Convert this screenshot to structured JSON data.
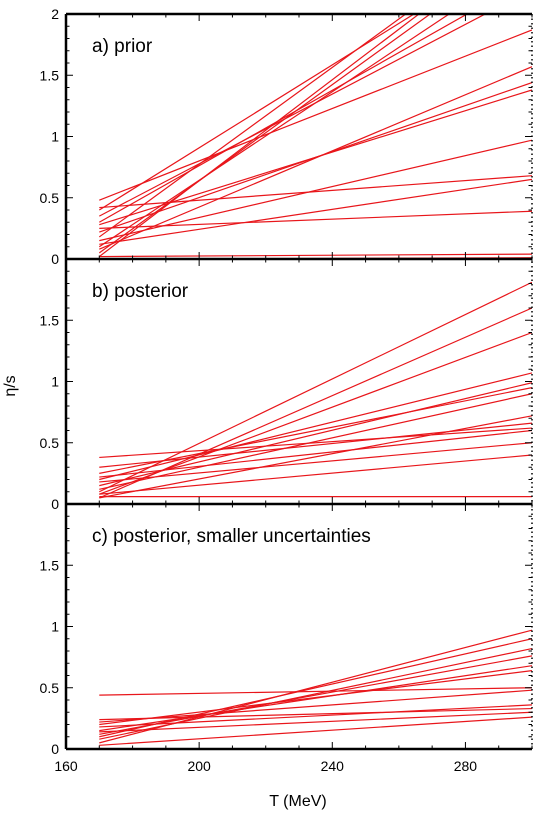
{
  "chart_data": {
    "type": "line",
    "xlabel": "T (MeV)",
    "ylabel": "η/s",
    "xlim": [
      160,
      300
    ],
    "ylim": [
      0,
      2
    ],
    "x_ticks": [
      "160",
      "200",
      "240",
      "280"
    ],
    "y_ticks": [
      "0",
      "0.5",
      "1",
      "1.5",
      "2"
    ],
    "line_color": "#e8161b",
    "grid": false,
    "panels": [
      {
        "id": "a",
        "title": "a) prior",
        "y_ticks": [
          "0",
          "0.5",
          "1",
          "1.5",
          "2"
        ],
        "series": [
          {
            "x": [
              170,
              300
            ],
            "y": [
              0.18,
              2.75
            ]
          },
          {
            "x": [
              170,
              300
            ],
            "y": [
              0.05,
              2.6
            ]
          },
          {
            "x": [
              170,
              300
            ],
            "y": [
              0.1,
              2.45
            ]
          },
          {
            "x": [
              170,
              300
            ],
            "y": [
              0.3,
              2.3
            ]
          },
          {
            "x": [
              170,
              300
            ],
            "y": [
              0.4,
              2.6
            ]
          },
          {
            "x": [
              170,
              300
            ],
            "y": [
              0.02,
              2.7
            ]
          },
          {
            "x": [
              170,
              300
            ],
            "y": [
              0.35,
              2.2
            ]
          },
          {
            "x": [
              170,
              300
            ],
            "y": [
              0.48,
              1.87
            ]
          },
          {
            "x": [
              170,
              300
            ],
            "y": [
              0.08,
              1.57
            ]
          },
          {
            "x": [
              170,
              300
            ],
            "y": [
              0.22,
              1.44
            ]
          },
          {
            "x": [
              170,
              300
            ],
            "y": [
              0.28,
              1.38
            ]
          },
          {
            "x": [
              170,
              300
            ],
            "y": [
              0.15,
              0.97
            ]
          },
          {
            "x": [
              170,
              300
            ],
            "y": [
              0.42,
              0.68
            ]
          },
          {
            "x": [
              170,
              300
            ],
            "y": [
              0.12,
              0.65
            ]
          },
          {
            "x": [
              170,
              300
            ],
            "y": [
              0.25,
              0.39
            ]
          },
          {
            "x": [
              170,
              300
            ],
            "y": [
              0.02,
              0.04
            ]
          },
          {
            "x": [
              170,
              300
            ],
            "y": [
              0.0,
              0.01
            ]
          }
        ]
      },
      {
        "id": "b",
        "title": "b) posterior",
        "y_ticks": [
          "0",
          "0.5",
          "1",
          "1.5"
        ],
        "series": [
          {
            "x": [
              170,
              300
            ],
            "y": [
              0.1,
              1.81
            ]
          },
          {
            "x": [
              170,
              300
            ],
            "y": [
              0.05,
              1.6
            ]
          },
          {
            "x": [
              170,
              300
            ],
            "y": [
              0.08,
              1.4
            ]
          },
          {
            "x": [
              170,
              300
            ],
            "y": [
              0.2,
              1.07
            ]
          },
          {
            "x": [
              170,
              300
            ],
            "y": [
              0.15,
              0.99
            ]
          },
          {
            "x": [
              170,
              300
            ],
            "y": [
              0.25,
              0.95
            ]
          },
          {
            "x": [
              170,
              300
            ],
            "y": [
              0.12,
              0.9
            ]
          },
          {
            "x": [
              170,
              300
            ],
            "y": [
              0.05,
              0.72
            ]
          },
          {
            "x": [
              170,
              300
            ],
            "y": [
              0.3,
              0.66
            ]
          },
          {
            "x": [
              170,
              300
            ],
            "y": [
              0.38,
              0.62
            ]
          },
          {
            "x": [
              170,
              300
            ],
            "y": [
              0.22,
              0.6
            ]
          },
          {
            "x": [
              170,
              300
            ],
            "y": [
              0.18,
              0.5
            ]
          },
          {
            "x": [
              170,
              300
            ],
            "y": [
              0.08,
              0.4
            ]
          },
          {
            "x": [
              170,
              300
            ],
            "y": [
              0.06,
              0.06
            ]
          }
        ]
      },
      {
        "id": "c",
        "title": "c) posterior, smaller uncertainties",
        "y_ticks": [
          "0",
          "0.5",
          "1",
          "1.5"
        ],
        "series": [
          {
            "x": [
              170,
              300
            ],
            "y": [
              0.05,
              0.97
            ]
          },
          {
            "x": [
              170,
              300
            ],
            "y": [
              0.1,
              0.9
            ]
          },
          {
            "x": [
              170,
              300
            ],
            "y": [
              0.08,
              0.82
            ]
          },
          {
            "x": [
              170,
              300
            ],
            "y": [
              0.12,
              0.76
            ]
          },
          {
            "x": [
              170,
              300
            ],
            "y": [
              0.15,
              0.68
            ]
          },
          {
            "x": [
              170,
              300
            ],
            "y": [
              0.2,
              0.64
            ]
          },
          {
            "x": [
              170,
              300
            ],
            "y": [
              0.44,
              0.5
            ]
          },
          {
            "x": [
              170,
              300
            ],
            "y": [
              0.22,
              0.48
            ]
          },
          {
            "x": [
              170,
              300
            ],
            "y": [
              0.18,
              0.36
            ]
          },
          {
            "x": [
              170,
              300
            ],
            "y": [
              0.24,
              0.33
            ]
          },
          {
            "x": [
              170,
              300
            ],
            "y": [
              0.14,
              0.3
            ]
          },
          {
            "x": [
              170,
              300
            ],
            "y": [
              0.03,
              0.26
            ]
          }
        ]
      }
    ]
  }
}
